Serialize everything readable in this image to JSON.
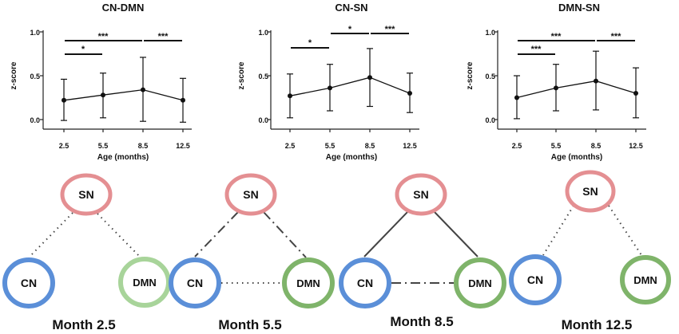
{
  "chart_data": [
    {
      "type": "line",
      "title": "CN-DMN",
      "xlabel": "Age (months)",
      "ylabel": "z-score",
      "categories": [
        "2.5",
        "5.5",
        "8.5",
        "12.5"
      ],
      "ylim": [
        0,
        1.0
      ],
      "yticks": [
        "0.0",
        "0.5",
        "1.0"
      ],
      "series": [
        {
          "name": "CN-DMN",
          "values": [
            0.22,
            0.28,
            0.34,
            0.22
          ],
          "error_low": [
            -0.01,
            0.02,
            -0.02,
            -0.03
          ],
          "error_high": [
            0.46,
            0.53,
            0.71,
            0.47
          ]
        }
      ],
      "significance": [
        {
          "from": 0,
          "to": 1,
          "label": "*"
        },
        {
          "from": 0,
          "to": 2,
          "label": "***"
        },
        {
          "from": 2,
          "to": 3,
          "label": "***"
        }
      ]
    },
    {
      "type": "line",
      "title": "CN-SN",
      "xlabel": "Age (months)",
      "ylabel": "z-score",
      "categories": [
        "2.5",
        "5.5",
        "8.5",
        "12.5"
      ],
      "ylim": [
        0,
        1.0
      ],
      "yticks": [
        "0.0",
        "0.5",
        "1.0"
      ],
      "series": [
        {
          "name": "CN-SN",
          "values": [
            0.27,
            0.36,
            0.48,
            0.3
          ],
          "error_low": [
            0.02,
            0.1,
            0.15,
            0.08
          ],
          "error_high": [
            0.52,
            0.63,
            0.81,
            0.53
          ]
        }
      ],
      "significance": [
        {
          "from": 0,
          "to": 1,
          "label": "*"
        },
        {
          "from": 1,
          "to": 2,
          "label": "*"
        },
        {
          "from": 2,
          "to": 3,
          "label": "***"
        }
      ]
    },
    {
      "type": "line",
      "title": "DMN-SN",
      "xlabel": "Age (months)",
      "ylabel": "z-score",
      "categories": [
        "2.5",
        "5.5",
        "8.5",
        "12.5"
      ],
      "ylim": [
        0,
        1.0
      ],
      "yticks": [
        "0.0",
        "0.5",
        "1.0"
      ],
      "series": [
        {
          "name": "DMN-SN",
          "values": [
            0.25,
            0.36,
            0.44,
            0.3
          ],
          "error_low": [
            0.01,
            0.1,
            0.11,
            0.02
          ],
          "error_high": [
            0.5,
            0.63,
            0.78,
            0.59
          ]
        }
      ],
      "significance": [
        {
          "from": 0,
          "to": 1,
          "label": "***"
        },
        {
          "from": 0,
          "to": 2,
          "label": "***"
        },
        {
          "from": 2,
          "to": 3,
          "label": "***"
        }
      ]
    }
  ],
  "networks": {
    "labels": {
      "sn": "SN",
      "cn": "CN",
      "dmn": "DMN"
    },
    "colors": {
      "sn": "#e48f92",
      "cn": "#5b8fd8",
      "dmn_dark": "#7fb46a",
      "dmn_light": "#a8d49a",
      "edge": "#444444"
    },
    "months": [
      {
        "label": "Month 2.5",
        "dmn_color": "light",
        "edges": {
          "cn_sn": "dotted",
          "dmn_sn": "dotted",
          "cn_dmn": "none"
        }
      },
      {
        "label": "Month 5.5",
        "dmn_color": "dark",
        "edges": {
          "cn_sn": "dashdot",
          "dmn_sn": "dashdot",
          "cn_dmn": "dotted"
        }
      },
      {
        "label": "Month 8.5",
        "dmn_color": "dark",
        "edges": {
          "cn_sn": "solid",
          "dmn_sn": "solid",
          "cn_dmn": "dashdot"
        }
      },
      {
        "label": "Month 12.5",
        "dmn_color": "dark",
        "edges": {
          "cn_sn": "dotted",
          "dmn_sn": "dotted",
          "cn_dmn": "none"
        }
      }
    ]
  }
}
